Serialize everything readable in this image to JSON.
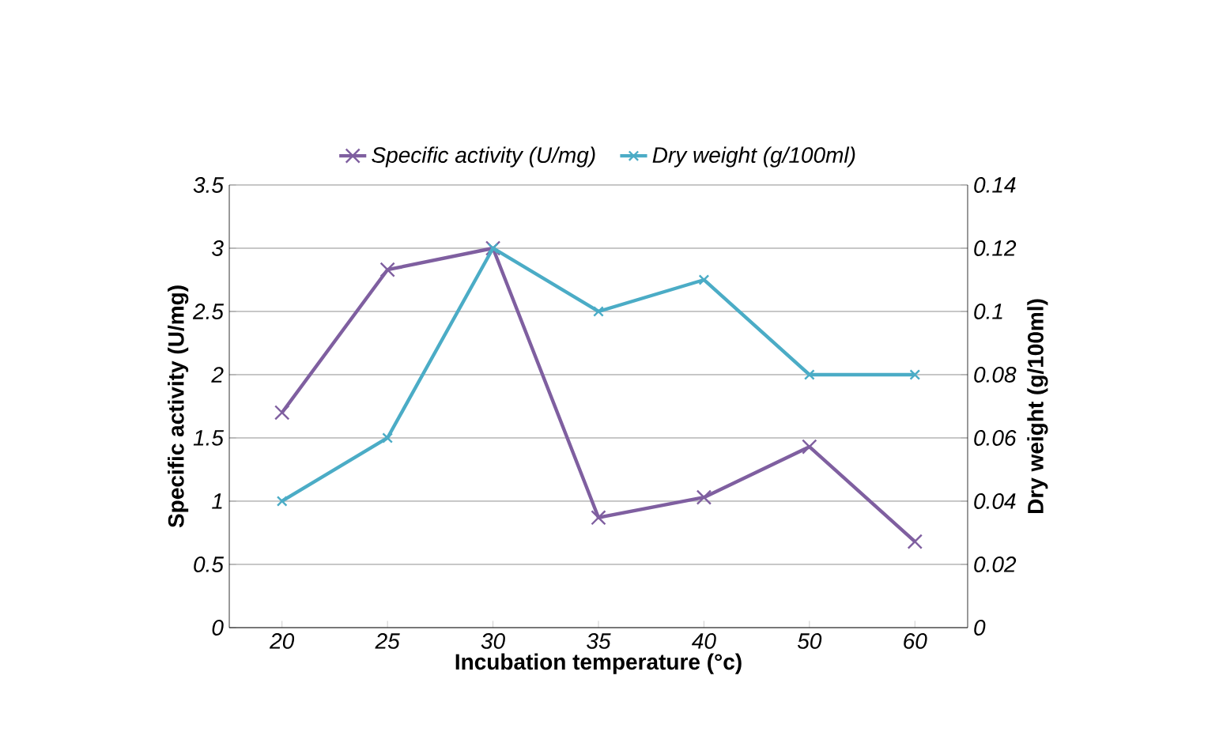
{
  "chart_data": {
    "type": "line",
    "xlabel": "Incubation temperature (°c)",
    "ylabel": "Specific activity (U/mg)",
    "y2label": "Dry weight (g/100ml)",
    "categories": [
      "20",
      "25",
      "30",
      "35",
      "40",
      "50",
      "60"
    ],
    "series": [
      {
        "name": "Specific activity (U/mg)",
        "color": "#7f5fa0",
        "marker": "cross",
        "values": [
          1.7,
          2.83,
          3.0,
          0.87,
          1.03,
          1.43,
          0.68
        ]
      },
      {
        "name": "Dry weight (g/100ml)",
        "color": "#4bacc6",
        "marker": "cross",
        "axis": "y2",
        "values": [
          0.04,
          0.06,
          0.12,
          0.1,
          0.11,
          0.08,
          0.08
        ]
      }
    ],
    "ylim": [
      0,
      3.5
    ],
    "yticks": [
      0,
      0.5,
      1,
      1.5,
      2,
      2.5,
      3,
      3.5
    ],
    "y2lim": [
      0,
      0.14
    ],
    "y2ticks": [
      0,
      0.02,
      0.04,
      0.06,
      0.08,
      0.1,
      0.12,
      0.14
    ],
    "grid": "y",
    "legend": "top",
    "line_style": "solid"
  }
}
